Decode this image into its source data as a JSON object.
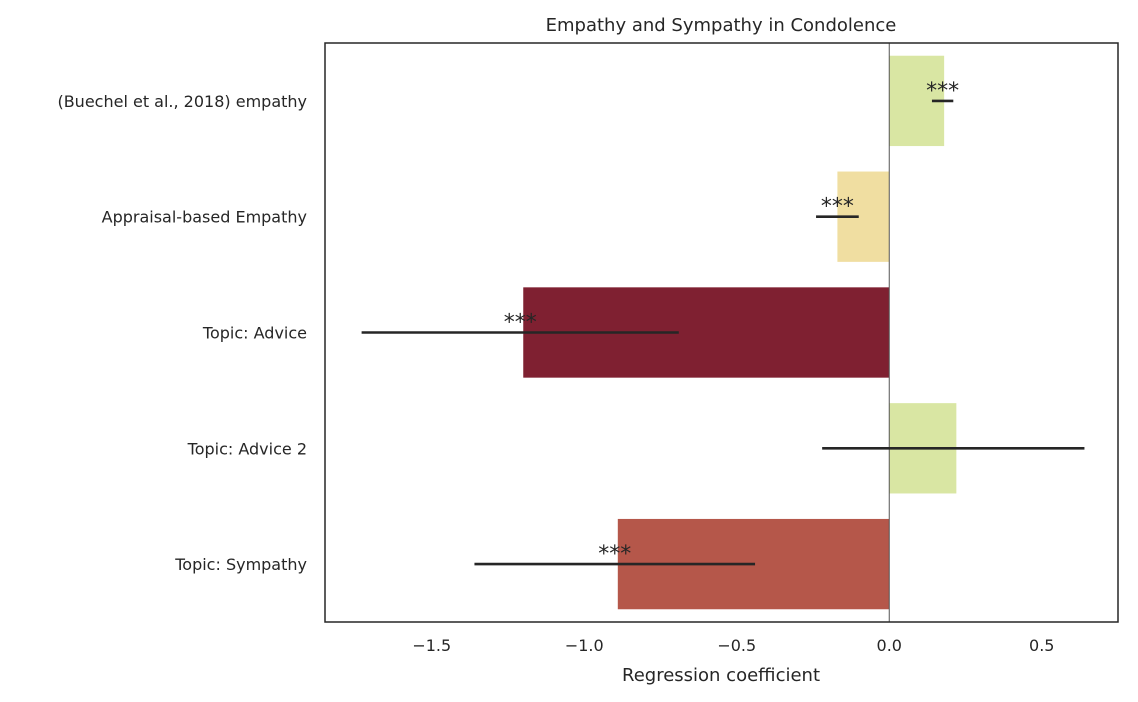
{
  "chart_data": {
    "type": "bar",
    "orientation": "horizontal",
    "title": "Empathy and Sympathy in Condolence",
    "xlabel": "Regression coefficient",
    "ylabel": "",
    "xlim": [
      -1.85,
      0.75
    ],
    "xticks": [
      -1.5,
      -1.0,
      -0.5,
      0.0,
      0.5
    ],
    "xtick_labels": [
      "−1.5",
      "−1.0",
      "−0.5",
      "0.0",
      "0.5"
    ],
    "grid": false,
    "reference_line": 0.0,
    "categories": [
      "(Buechel et al., 2018) empathy",
      "Appraisal-based Empathy",
      "Topic: Advice",
      "Topic: Advice 2",
      "Topic: Sympathy"
    ],
    "values": [
      0.18,
      -0.17,
      -1.2,
      0.22,
      -0.89
    ],
    "error_low": [
      0.14,
      -0.24,
      -1.73,
      -0.22,
      -1.36
    ],
    "error_high": [
      0.21,
      -0.1,
      -0.69,
      0.64,
      -0.44
    ],
    "significance": [
      "***",
      "***",
      "***",
      "",
      "***"
    ],
    "colors": [
      "#d9e6a3",
      "#f0dea1",
      "#7f2031",
      "#d9e6a3",
      "#b5574a"
    ],
    "errorbar_color": "#262626",
    "frame_color": "#262626"
  }
}
